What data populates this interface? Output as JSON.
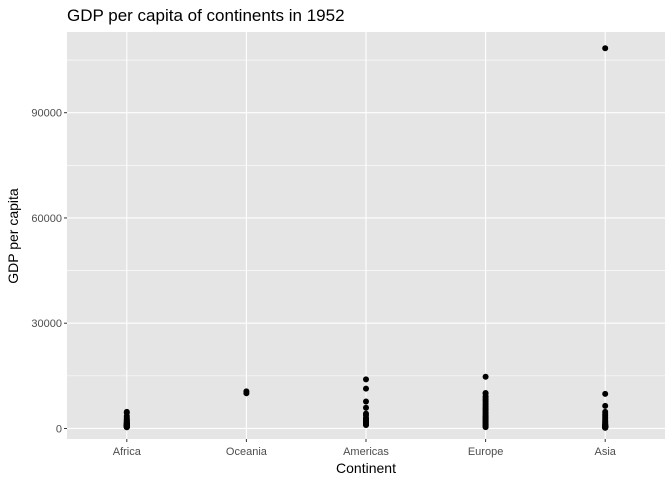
{
  "chart_data": {
    "type": "scatter",
    "title": "GDP per capita of continents in 1952",
    "xlabel": "Continent",
    "ylabel": "GDP per capita",
    "categories": [
      "Africa",
      "Oceania",
      "Americas",
      "Europe",
      "Asia"
    ],
    "yticks": [
      0,
      30000,
      60000,
      90000
    ],
    "ytick_labels": [
      "0",
      "30000",
      "60000",
      "90000"
    ],
    "ylim": [
      -3000,
      113000
    ],
    "grid": true,
    "panel_background": "#e5e5e5",
    "point_color": "#000000",
    "series": [
      {
        "category": "Africa",
        "values": [
          4725,
          4450,
          3520,
          3000,
          2670,
          2420,
          2190,
          2010,
          1830,
          1680,
          1540,
          1440,
          1370,
          1310,
          1260,
          1210,
          1160,
          1120,
          1080,
          1030,
          990,
          950,
          910,
          870,
          830,
          790,
          750,
          710,
          680,
          650,
          620,
          590,
          560,
          530,
          500,
          470,
          440,
          410,
          380,
          350
        ]
      },
      {
        "category": "Oceania",
        "values": [
          10557,
          10040
        ]
      },
      {
        "category": "Americas",
        "values": [
          13990,
          11367,
          7690,
          5911,
          4245,
          3758,
          3048,
          2800,
          2600,
          2430,
          2310,
          2200,
          2110,
          2020,
          1950,
          1880,
          1800,
          1700,
          1600,
          1500,
          1400,
          1300,
          1200,
          1100,
          1000
        ]
      },
      {
        "category": "Europe",
        "values": [
          14734,
          10095,
          9980,
          9200,
          8700,
          8230,
          7800,
          7200,
          6700,
          6200,
          5800,
          5400,
          5000,
          4600,
          4200,
          3800,
          3500,
          3200,
          2950,
          2700,
          2450,
          2200,
          1950,
          1700,
          1450,
          1200,
          1000,
          800,
          600,
          400
        ]
      },
      {
        "category": "Asia",
        "values": [
          108382,
          9867,
          6430,
          4730,
          4160,
          3700,
          3220,
          2750,
          2320,
          1950,
          1650,
          1400,
          1200,
          1050,
          930,
          850,
          780,
          720,
          670,
          620,
          580,
          540,
          500,
          460,
          430,
          400,
          370,
          340,
          310,
          280,
          250,
          220,
          190
        ]
      }
    ]
  }
}
